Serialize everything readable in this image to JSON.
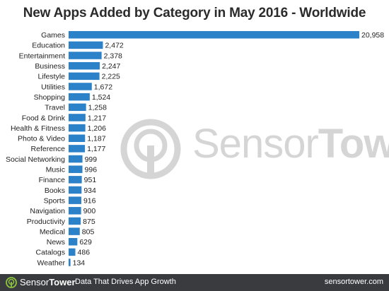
{
  "chart_data": {
    "type": "bar",
    "orientation": "horizontal",
    "title": "New Apps Added by Category in May 2016 - Worldwide",
    "categories": [
      "Games",
      "Education",
      "Entertainment",
      "Business",
      "Lifestyle",
      "Utilities",
      "Shopping",
      "Travel",
      "Food & Drink",
      "Health & Fitness",
      "Photo & Video",
      "Reference",
      "Social Networking",
      "Music",
      "Finance",
      "Books",
      "Sports",
      "Navigation",
      "Productivity",
      "Medical",
      "News",
      "Catalogs",
      "Weather"
    ],
    "values": [
      20958,
      2472,
      2378,
      2247,
      2225,
      1672,
      1524,
      1258,
      1217,
      1206,
      1187,
      1177,
      999,
      996,
      951,
      934,
      916,
      900,
      875,
      805,
      629,
      486,
      134
    ],
    "value_labels": [
      "20,958",
      "2,472",
      "2,378",
      "2,247",
      "2,225",
      "1,672",
      "1,524",
      "1,258",
      "1,217",
      "1,206",
      "1,187",
      "1,177",
      "999",
      "996",
      "951",
      "934",
      "916",
      "900",
      "875",
      "805",
      "629",
      "486",
      "134"
    ],
    "xlim": [
      0,
      20958
    ],
    "grid": false,
    "bar_color": "#2c82c9"
  },
  "watermark": {
    "brand_part1": "Sensor",
    "brand_part2": "Tower"
  },
  "footer": {
    "brand_part1": "Sensor",
    "brand_part2": "Tower",
    "tagline": "Data That Drives App Growth",
    "url": "sensortower.com",
    "background": "#3a3b3f"
  }
}
